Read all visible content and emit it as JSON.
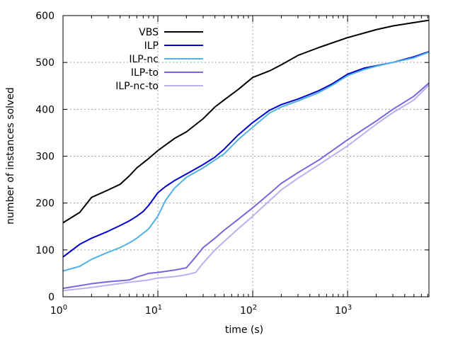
{
  "chart_data": {
    "type": "line",
    "xlabel": "time (s)",
    "ylabel": "number of instances solved",
    "xscale": "log",
    "xlim": [
      1,
      7200
    ],
    "ylim": [
      0,
      600
    ],
    "grid": true,
    "legend_position": "top-left",
    "x_ticks": [
      {
        "value": 1,
        "base": "10",
        "exp": "0"
      },
      {
        "value": 10,
        "base": "10",
        "exp": "1"
      },
      {
        "value": 100,
        "base": "10",
        "exp": "2"
      },
      {
        "value": 1000,
        "base": "10",
        "exp": "3"
      }
    ],
    "y_ticks": [
      {
        "value": 0,
        "label": "0"
      },
      {
        "value": 100,
        "label": "100"
      },
      {
        "value": 200,
        "label": "200"
      },
      {
        "value": 300,
        "label": "300"
      },
      {
        "value": 400,
        "label": "400"
      },
      {
        "value": 500,
        "label": "500"
      },
      {
        "value": 600,
        "label": "600"
      }
    ],
    "series": [
      {
        "name": "VBS",
        "color": "#000000",
        "points": [
          [
            1,
            158
          ],
          [
            1.5,
            180
          ],
          [
            2,
            212
          ],
          [
            3,
            228
          ],
          [
            4,
            240
          ],
          [
            5,
            258
          ],
          [
            6,
            275
          ],
          [
            8,
            295
          ],
          [
            10,
            312
          ],
          [
            15,
            338
          ],
          [
            20,
            352
          ],
          [
            30,
            380
          ],
          [
            40,
            405
          ],
          [
            50,
            420
          ],
          [
            70,
            442
          ],
          [
            100,
            468
          ],
          [
            150,
            482
          ],
          [
            200,
            495
          ],
          [
            300,
            515
          ],
          [
            500,
            532
          ],
          [
            1000,
            553
          ],
          [
            2000,
            570
          ],
          [
            3000,
            578
          ],
          [
            5000,
            585
          ],
          [
            7200,
            590
          ]
        ]
      },
      {
        "name": "ILP",
        "color": "#0000cc",
        "points": [
          [
            1,
            85
          ],
          [
            1.5,
            112
          ],
          [
            2,
            125
          ],
          [
            3,
            140
          ],
          [
            4,
            152
          ],
          [
            5,
            162
          ],
          [
            6,
            172
          ],
          [
            7,
            182
          ],
          [
            8,
            195
          ],
          [
            10,
            222
          ],
          [
            12,
            235
          ],
          [
            15,
            248
          ],
          [
            20,
            262
          ],
          [
            30,
            282
          ],
          [
            40,
            298
          ],
          [
            50,
            315
          ],
          [
            70,
            345
          ],
          [
            100,
            372
          ],
          [
            150,
            398
          ],
          [
            200,
            410
          ],
          [
            300,
            422
          ],
          [
            400,
            432
          ],
          [
            500,
            440
          ],
          [
            700,
            455
          ],
          [
            1000,
            475
          ],
          [
            1500,
            488
          ],
          [
            2000,
            493
          ],
          [
            3000,
            500
          ],
          [
            5000,
            512
          ],
          [
            7200,
            523
          ]
        ]
      },
      {
        "name": "ILP-nc",
        "color": "#4fb3e3",
        "points": [
          [
            1,
            55
          ],
          [
            1.5,
            65
          ],
          [
            2,
            80
          ],
          [
            3,
            95
          ],
          [
            4,
            105
          ],
          [
            5,
            115
          ],
          [
            6,
            125
          ],
          [
            8,
            145
          ],
          [
            10,
            172
          ],
          [
            12,
            205
          ],
          [
            15,
            232
          ],
          [
            20,
            255
          ],
          [
            30,
            275
          ],
          [
            40,
            292
          ],
          [
            50,
            305
          ],
          [
            70,
            335
          ],
          [
            100,
            362
          ],
          [
            150,
            392
          ],
          [
            200,
            405
          ],
          [
            300,
            418
          ],
          [
            400,
            428
          ],
          [
            500,
            436
          ],
          [
            700,
            452
          ],
          [
            1000,
            472
          ],
          [
            1500,
            485
          ],
          [
            2000,
            492
          ],
          [
            3000,
            500
          ],
          [
            5000,
            510
          ],
          [
            7200,
            522
          ]
        ]
      },
      {
        "name": "ILP-to",
        "color": "#7766dd",
        "points": [
          [
            1,
            18
          ],
          [
            2,
            28
          ],
          [
            3,
            32
          ],
          [
            5,
            36
          ],
          [
            6,
            42
          ],
          [
            8,
            50
          ],
          [
            10,
            52
          ],
          [
            15,
            57
          ],
          [
            20,
            62
          ],
          [
            25,
            85
          ],
          [
            30,
            105
          ],
          [
            40,
            125
          ],
          [
            50,
            142
          ],
          [
            70,
            165
          ],
          [
            100,
            190
          ],
          [
            150,
            220
          ],
          [
            200,
            242
          ],
          [
            300,
            265
          ],
          [
            500,
            292
          ],
          [
            1000,
            335
          ],
          [
            2000,
            375
          ],
          [
            3000,
            400
          ],
          [
            5000,
            428
          ],
          [
            7200,
            456
          ]
        ]
      },
      {
        "name": "ILP-nc-to",
        "color": "#b6b3f2",
        "points": [
          [
            1,
            13
          ],
          [
            2,
            20
          ],
          [
            3,
            25
          ],
          [
            5,
            31
          ],
          [
            8,
            36
          ],
          [
            10,
            40
          ],
          [
            15,
            43
          ],
          [
            20,
            47
          ],
          [
            25,
            52
          ],
          [
            30,
            72
          ],
          [
            40,
            100
          ],
          [
            50,
            118
          ],
          [
            70,
            145
          ],
          [
            100,
            172
          ],
          [
            150,
            205
          ],
          [
            200,
            228
          ],
          [
            300,
            253
          ],
          [
            500,
            282
          ],
          [
            1000,
            322
          ],
          [
            2000,
            368
          ],
          [
            3000,
            393
          ],
          [
            5000,
            420
          ],
          [
            7200,
            452
          ]
        ]
      }
    ]
  }
}
